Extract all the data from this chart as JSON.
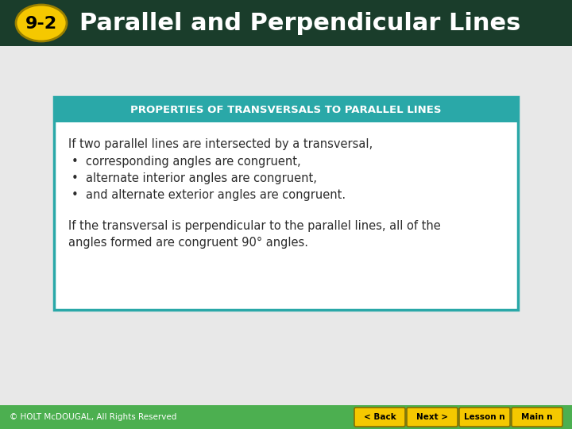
{
  "title": "Parallel and Perpendicular Lines",
  "badge_text": "9-2",
  "header_bg": "#1a3d2b",
  "badge_fill": "#f5c800",
  "badge_text_color": "#000000",
  "title_color": "#ffffff",
  "slide_bg": "#e8e8e8",
  "box_border_color": "#2aa8a8",
  "box_title_bg": "#2aa8a8",
  "box_title_text": "PROPERTIES OF TRANSVERSALS TO PARALLEL LINES",
  "box_title_color": "#ffffff",
  "box_bg": "#ffffff",
  "body_text_color": "#2c2c2c",
  "footer_bg": "#4caf50",
  "footer_text": "© HOLT McDOUGAL, All Rights Reserved",
  "footer_text_color": "#ffffff",
  "button_fill": "#f5c800",
  "button_text_color": "#000000",
  "buttons": [
    "< Back",
    "Next >",
    "Lesson n",
    "Main n"
  ],
  "line1": "If two parallel lines are intersected by a transversal,",
  "bullets": [
    "corresponding angles are congruent,",
    "alternate interior angles are congruent,",
    "and alternate exterior angles are congruent."
  ],
  "line2": "If the transversal is perpendicular to the parallel lines, all of the",
  "line3": "angles formed are congruent 90° angles."
}
